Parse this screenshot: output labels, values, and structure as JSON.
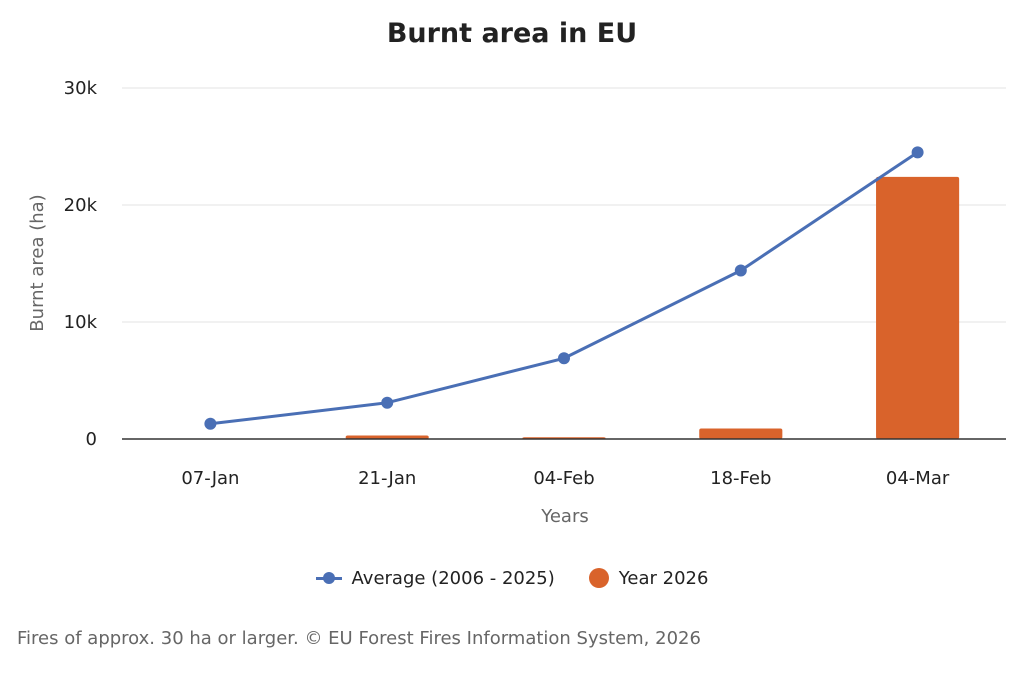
{
  "chart_data": {
    "type": "bar",
    "title": "Burnt area in EU",
    "xlabel": "Years",
    "ylabel": "Burnt area (ha)",
    "categories": [
      "07-Jan",
      "21-Jan",
      "04-Feb",
      "18-Feb",
      "04-Mar"
    ],
    "ylim": [
      0,
      30000
    ],
    "yticks": [
      0,
      10000,
      20000,
      30000
    ],
    "ytick_labels": [
      "0",
      "10k",
      "20k",
      "30k"
    ],
    "grid": true,
    "legend_position": "bottom",
    "series": [
      {
        "name": "Average (2006 - 2025)",
        "type": "line",
        "color": "#4a6fb5",
        "values": [
          1300,
          3100,
          6900,
          14400,
          24500
        ]
      },
      {
        "name": "Year 2026",
        "type": "bar",
        "color": "#d9632b",
        "values": [
          0,
          300,
          150,
          900,
          22400
        ]
      }
    ]
  },
  "footnote": "Fires of approx. 30 ha or larger. © EU Forest Fires Information System, 2026"
}
